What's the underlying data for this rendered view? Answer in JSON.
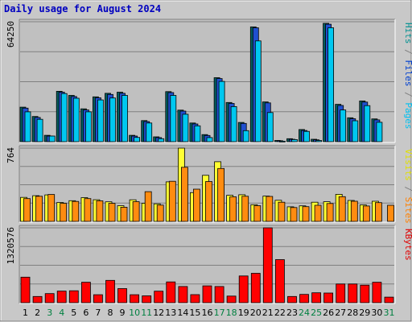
{
  "chart_data": {
    "type": "bar",
    "title": "Daily usage for August 2024",
    "categories": [
      "1",
      "2",
      "3",
      "4",
      "5",
      "6",
      "7",
      "8",
      "9",
      "10",
      "11",
      "12",
      "13",
      "14",
      "15",
      "16",
      "17",
      "18",
      "19",
      "20",
      "21",
      "22",
      "23",
      "24",
      "25",
      "26",
      "27",
      "28",
      "29",
      "30",
      "31"
    ],
    "weekend_days": [
      3,
      4,
      10,
      11,
      17,
      18,
      24,
      25,
      31
    ],
    "panels": [
      {
        "name": "hits-files-pages",
        "max_label": "64250",
        "ylim": [
          0,
          64250
        ],
        "legend": [
          {
            "text": "Pages",
            "color": "#00c0f0"
          },
          {
            "text": " / ",
            "color": "#808080"
          },
          {
            "text": "Files",
            "color": "#0040d0"
          },
          {
            "text": " / ",
            "color": "#808080"
          },
          {
            "text": "Hits",
            "color": "#009090"
          }
        ],
        "series": [
          {
            "name": "Hits",
            "color": "#006060",
            "values": [
              18500,
              13500,
              3400,
              27000,
              24800,
              17600,
              24000,
              25900,
              26500,
              3400,
              11300,
              2600,
              26800,
              16900,
              10000,
              3800,
              34300,
              21000,
              10300,
              61500,
              21300,
              650,
              1600,
              6500,
              1300,
              63400,
              20000,
              12800,
              21800,
              12200,
              0
            ]
          },
          {
            "name": "Files",
            "color": "#2050d0",
            "values": [
              18000,
              13000,
              3000,
              26500,
              24200,
              17000,
              23500,
              25300,
              25900,
              3000,
              10800,
              2200,
              26300,
              16400,
              9500,
              3300,
              33800,
              20500,
              9800,
              61000,
              20800,
              500,
              1300,
              6000,
              1000,
              62900,
              19400,
              12300,
              21200,
              11700,
              0
            ]
          },
          {
            "name": "Pages",
            "color": "#00c8f0",
            "values": [
              16000,
              12000,
              3000,
              25800,
              23300,
              16000,
              22400,
              23400,
              24800,
              2300,
              10000,
              1600,
              24800,
              14700,
              8500,
              2200,
              32300,
              18800,
              5900,
              54000,
              15600,
              250,
              1100,
              5500,
              650,
              61000,
              17000,
              11200,
              19300,
              10400,
              0
            ]
          }
        ]
      },
      {
        "name": "visits-sites",
        "max_label": "764",
        "ylim": [
          0,
          764
        ],
        "legend": [
          {
            "text": "Sites",
            "color": "#ff8000"
          },
          {
            "text": " / ",
            "color": "#808080"
          },
          {
            "text": "Visits",
            "color": "#e0e000"
          }
        ],
        "series": [
          {
            "name": "Visits",
            "color": "#ffff33",
            "values": [
              250,
              268,
              276,
              197,
              216,
              248,
              226,
              204,
              164,
              225,
              189,
              183,
              412,
              764,
              300,
              480,
              622,
              272,
              278,
              174,
              264,
              220,
              152,
              162,
              200,
              205,
              282,
              218,
              172,
              210,
              0
            ]
          },
          {
            "name": "Sites",
            "color": "#ff8c10",
            "values": [
              238,
              262,
              280,
              188,
              208,
              238,
              214,
              188,
              148,
              206,
              310,
              170,
              418,
              564,
              336,
              416,
              552,
              256,
              262,
              164,
              260,
              200,
              144,
              154,
              168,
              186,
              258,
              210,
              160,
              196,
              168
            ]
          }
        ]
      },
      {
        "name": "kbytes",
        "max_label": "1320576",
        "ylim": [
          0,
          1320576
        ],
        "legend": [
          {
            "text": "KBytes",
            "color": "#e00000"
          }
        ],
        "series": [
          {
            "name": "KBytes",
            "color": "#ff0000",
            "values": [
              450000,
              110000,
              160000,
              205000,
              210000,
              360000,
              140000,
              393000,
              248000,
              140000,
              120000,
              203000,
              367000,
              286000,
              142000,
              297000,
              286000,
              116000,
              471000,
              518000,
              1320576,
              760000,
              110000,
              146000,
              175000,
              170000,
              330000,
              330000,
              310000,
              360000,
              98000
            ]
          }
        ]
      }
    ]
  }
}
